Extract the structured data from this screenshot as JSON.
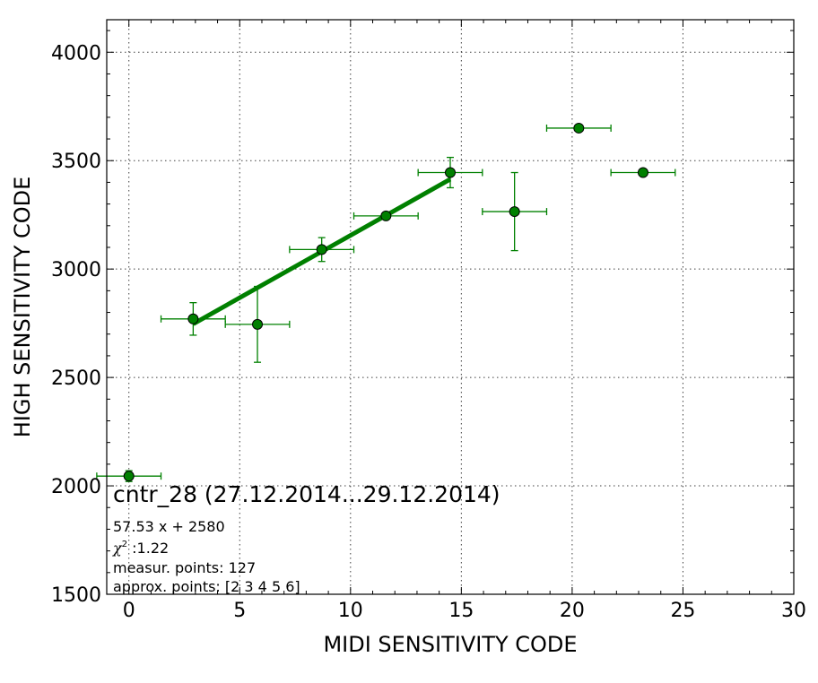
{
  "chart_data": {
    "type": "scatter",
    "title": "",
    "xlabel": "MIDI SENSITIVITY CODE",
    "ylabel": "HIGH SENSITIVITY CODE",
    "xlim": [
      -1,
      30
    ],
    "ylim": [
      1500,
      4150
    ],
    "x_ticks": [
      "0",
      "5",
      "10",
      "15",
      "20",
      "25",
      "30"
    ],
    "y_ticks": [
      "1500",
      "2000",
      "2500",
      "3000",
      "3500",
      "4000"
    ],
    "grid": true,
    "point_color": "#008000",
    "fit_color": "#008000",
    "series": [
      {
        "points": [
          {
            "x": 0,
            "y": 2045,
            "xerr": 1.45,
            "yerr": 25
          },
          {
            "x": 2.9,
            "y": 2770,
            "xerr": 1.45,
            "yerr": 75
          },
          {
            "x": 5.8,
            "y": 2745,
            "xerr": 1.45,
            "yerr": 175
          },
          {
            "x": 8.7,
            "y": 3090,
            "xerr": 1.45,
            "yerr": 55
          },
          {
            "x": 11.6,
            "y": 3245,
            "xerr": 1.45,
            "yerr": 0
          },
          {
            "x": 14.5,
            "y": 3445,
            "xerr": 1.45,
            "yerr": 70
          },
          {
            "x": 17.4,
            "y": 3265,
            "xerr": 1.45,
            "yerr": 180
          },
          {
            "x": 20.3,
            "y": 3650,
            "xerr": 1.45,
            "yerr": 0
          },
          {
            "x": 23.2,
            "y": 3445,
            "xerr": 1.45,
            "yerr": 0
          }
        ]
      }
    ],
    "fit": {
      "slope": 57.53,
      "intercept": 2580,
      "x_from": 2.9,
      "x_to": 14.5
    },
    "annotations": {
      "title": "cntr_28 (27.12.2014...29.12.2014)",
      "equation": "57.53 x + 2580",
      "chi2_symbol": "χ",
      "chi2_exp": "2",
      "chi2_value": " :1.22",
      "measur_points": "measur. points: 127",
      "approx_points": "approx. points: [2 3 4 5 6]"
    }
  }
}
